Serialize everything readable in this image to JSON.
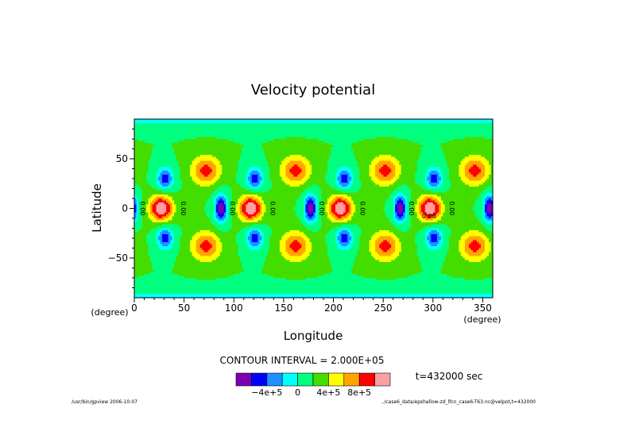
{
  "chart_data": {
    "type": "heatmap",
    "title": "Velocity potential",
    "xlabel": "Longitude",
    "ylabel": "Latitude",
    "x_unit": "(degree)",
    "y_unit": "(degree)",
    "xlim": [
      0,
      360
    ],
    "ylim": [
      -90,
      90
    ],
    "x_ticks": [
      "0",
      "50",
      "100",
      "150",
      "200",
      "250",
      "300",
      "350"
    ],
    "y_ticks": [
      "50",
      "0",
      "−50"
    ],
    "contour_interval_text": "CONTOUR INTERVAL = 2.000E+05",
    "time_label": "t=432000 sec",
    "contour_labels": [
      "0.00",
      "0.00",
      "0.00",
      "0.00",
      "0.00",
      "0.00",
      "0.00",
      "0.00",
      "0.00"
    ],
    "wave_period_deg": 90,
    "field_amplitude": 1000000,
    "colorbar": {
      "levels": [
        -800000.0,
        -600000.0,
        -400000.0,
        -200000.0,
        0,
        200000.0,
        400000.0,
        600000.0,
        800000.0,
        1000000.0
      ],
      "colors": [
        "#7a00b0",
        "#0000ff",
        "#1e90ff",
        "#00ffff",
        "#00ff7f",
        "#44dd00",
        "#ffff00",
        "#ffa500",
        "#ff0000",
        "#ffa0a0"
      ],
      "tick_labels": [
        "−4e+5",
        "0",
        "4e+5",
        "8e+5"
      ]
    },
    "grid": false,
    "legend": "bottom"
  },
  "footer": {
    "left": "/usr/bin/gpview  2006-10-07",
    "right": "../case6_data/epshallow-zd_lfcn_case6-T63.nc@velpot,t=432000"
  }
}
